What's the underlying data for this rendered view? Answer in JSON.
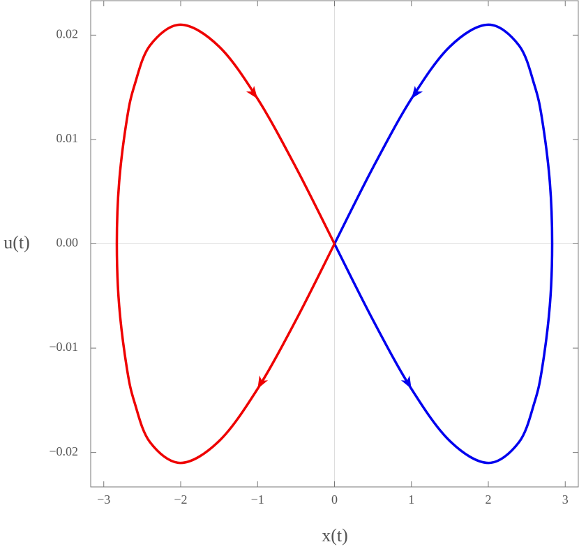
{
  "chart_data": {
    "type": "line",
    "x_label": "x(t)",
    "y_label": "u(t)",
    "xlim": [
      -3.17,
      3.17
    ],
    "ylim": [
      -0.0233,
      0.0233
    ],
    "xticks": [
      {
        "value": -3,
        "label": "−3"
      },
      {
        "value": -2,
        "label": "−2"
      },
      {
        "value": -1,
        "label": "−1"
      },
      0,
      1,
      2,
      3
    ],
    "yticks": [
      {
        "value": -0.02,
        "label": "−0.02"
      },
      {
        "value": -0.01,
        "label": "−0.01"
      },
      {
        "value": 0,
        "label": "0.00"
      },
      0.01,
      0.02
    ],
    "zero_lines": true,
    "series": [
      {
        "color": "#0000ee",
        "x": [
          0,
          0.5,
          1,
          1.5,
          2,
          2.4,
          2.6,
          2.7,
          2.8,
          2.83,
          2.8,
          2.7,
          2.6,
          2.4,
          2,
          1.5,
          1,
          0.5,
          0
        ],
        "values": [
          0,
          -0.0073,
          -0.0139,
          -0.0189,
          -0.021,
          -0.019,
          -0.0152,
          -0.0119,
          -0.0059,
          0,
          0.0059,
          0.0119,
          0.0152,
          0.019,
          0.021,
          0.0189,
          0.0139,
          0.0073,
          0
        ]
      },
      {
        "color": "#ee0000",
        "x": [
          0,
          -0.5,
          -1,
          -1.5,
          -2,
          -2.4,
          -2.6,
          -2.7,
          -2.8,
          -2.83,
          -2.8,
          -2.7,
          -2.6,
          -2.4,
          -2,
          -1.5,
          -1,
          -0.5,
          0
        ],
        "values": [
          0,
          -0.0073,
          -0.0139,
          -0.0189,
          -0.021,
          -0.019,
          -0.0152,
          -0.0119,
          -0.0059,
          0,
          0.0059,
          0.0119,
          0.0152,
          0.019,
          0.021,
          0.0189,
          0.0139,
          0.0073,
          0
        ]
      }
    ]
  }
}
